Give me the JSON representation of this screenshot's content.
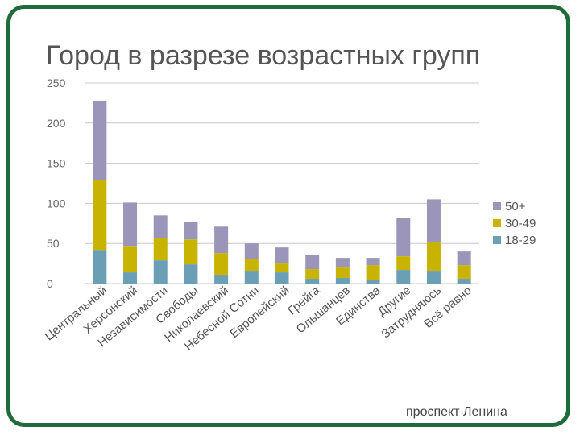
{
  "slide": {
    "title": "Город в разрезе возрастных групп",
    "footer": "проспект Ленина",
    "frame_color": "#1f6b3a"
  },
  "chart_data": {
    "type": "bar",
    "stacked": true,
    "title": "",
    "xlabel": "",
    "ylabel": "",
    "ylim": [
      0,
      250
    ],
    "yticks": [
      0,
      50,
      100,
      150,
      200,
      250
    ],
    "grid": true,
    "legend_position": "right",
    "categories": [
      "Центральный",
      "Херсонский",
      "Независимости",
      "Свободы",
      "Николаевский",
      "Небесной Сотни",
      "Европейский",
      "Грейга",
      "Ольшанцев",
      "Единства",
      "Другие",
      "Затрудняюсь",
      "Всё равно"
    ],
    "series": [
      {
        "name": "18-29",
        "color": "#6a9fb5",
        "values": [
          42,
          14,
          29,
          24,
          11,
          15,
          14,
          6,
          7,
          4,
          17,
          15,
          6
        ]
      },
      {
        "name": "30-49",
        "color": "#c8b400",
        "values": [
          87,
          33,
          28,
          31,
          27,
          16,
          11,
          12,
          13,
          19,
          17,
          37,
          17
        ]
      },
      {
        "name": "50+",
        "color": "#9b95b9",
        "values": [
          99,
          54,
          28,
          22,
          33,
          19,
          20,
          18,
          12,
          9,
          48,
          53,
          17
        ]
      }
    ]
  }
}
